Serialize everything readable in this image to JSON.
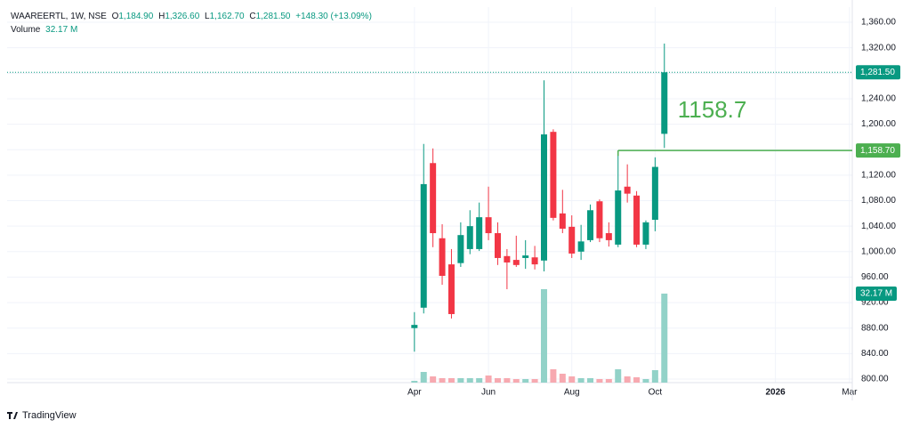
{
  "header": {
    "symbol": "WAAREERTL, 1W, NSE",
    "o": "O",
    "open": "1,184.90",
    "h": "H",
    "high": "1,326.60",
    "l": "L",
    "low": "1,162.70",
    "c": "C",
    "close": "1,281.50",
    "change": "+148.30 (+13.09%)",
    "volume": "Volume",
    "volume_value": "32.17 M"
  },
  "chart_data": {
    "type": "candlestick",
    "open": [
      880,
      912,
      1139,
      1021,
      980,
      982,
      1004,
      1004,
      1054,
      1029,
      993,
      987,
      990,
      991,
      986,
      1188,
      1060,
      1039,
      1000,
      1018,
      1079,
      1029,
      1011,
      1102,
      1088,
      1011,
      1050,
      1184.9
    ],
    "high": [
      905,
      1169,
      1162,
      1043,
      1004,
      1046,
      1065,
      1077,
      1102,
      1046,
      1004,
      1025,
      1018,
      1009,
      1269,
      1192,
      1097,
      1057,
      1042,
      1074,
      1082,
      1046,
      1158.7,
      1137,
      1095,
      1049,
      1148,
      1326.6
    ],
    "low": [
      843,
      903,
      1007,
      948,
      895,
      976,
      996,
      1001,
      1018,
      979,
      941,
      976,
      973,
      972,
      969,
      1049,
      1029,
      990,
      987,
      1015,
      1015,
      1008,
      1007,
      1077,
      1007,
      1004,
      1032,
      1162.7
    ],
    "close": [
      885,
      1106,
      1029,
      962,
      902,
      1026,
      1040,
      1054,
      1029,
      990,
      983,
      979,
      994,
      980,
      1184,
      1053,
      1036,
      997,
      1016,
      1065,
      1021,
      1018,
      1096,
      1091,
      1011,
      1046,
      1133,
      1281.5
    ],
    "volume": [
      0.64,
      3.86,
      2.25,
      1.61,
      1.61,
      1.61,
      1.61,
      1.61,
      2.57,
      1.61,
      1.61,
      1.29,
      1.29,
      1.29,
      33.78,
      4.83,
      3.22,
      2.25,
      1.61,
      1.61,
      1.29,
      1.29,
      4.83,
      2.25,
      1.93,
      1.29,
      4.5,
      32.17
    ],
    "up_color": "#089981",
    "down_color": "#f23645",
    "up_volume_color": "#92d2c8",
    "down_volume_color": "#f7a9b0",
    "xlim": [
      -44,
      47.3
    ],
    "xticks": [
      {
        "value": 0,
        "label": "Apr"
      },
      {
        "value": 8,
        "label": "Jun"
      },
      {
        "value": 17,
        "label": "Aug"
      },
      {
        "value": 26,
        "label": "Oct"
      },
      {
        "value": 39,
        "label": "2026"
      },
      {
        "value": 47,
        "label": "Mar"
      }
    ],
    "ylim": [
      794.4,
      1383.8
    ],
    "yticks": [
      {
        "value": 800,
        "label": "800.00"
      },
      {
        "value": 840,
        "label": "840.00"
      },
      {
        "value": 880,
        "label": "880.00"
      },
      {
        "value": 920,
        "label": "920.00"
      },
      {
        "value": 960,
        "label": "960.00"
      },
      {
        "value": 1000,
        "label": "1,000.00"
      },
      {
        "value": 1040,
        "label": "1,040.00"
      },
      {
        "value": 1080,
        "label": "1,080.00"
      },
      {
        "value": 1120,
        "label": "1,120.00"
      },
      {
        "value": 1160,
        "label": "1,160.00"
      },
      {
        "value": 1200,
        "label": "1,200.00"
      },
      {
        "value": 1240,
        "label": "1,240.00"
      },
      {
        "value": 1280,
        "label": "1,280.00"
      },
      {
        "value": 1320,
        "label": "1,320.00"
      },
      {
        "value": 1360,
        "label": "1,360.00"
      }
    ],
    "volume_lim": [
      0,
      135.7
    ],
    "last_label": "1,281.50",
    "level": {
      "value": 1158.7,
      "label": "1,158.70",
      "color": "#4caf50"
    },
    "grid": true
  },
  "footer": {
    "brand": "TradingView"
  }
}
